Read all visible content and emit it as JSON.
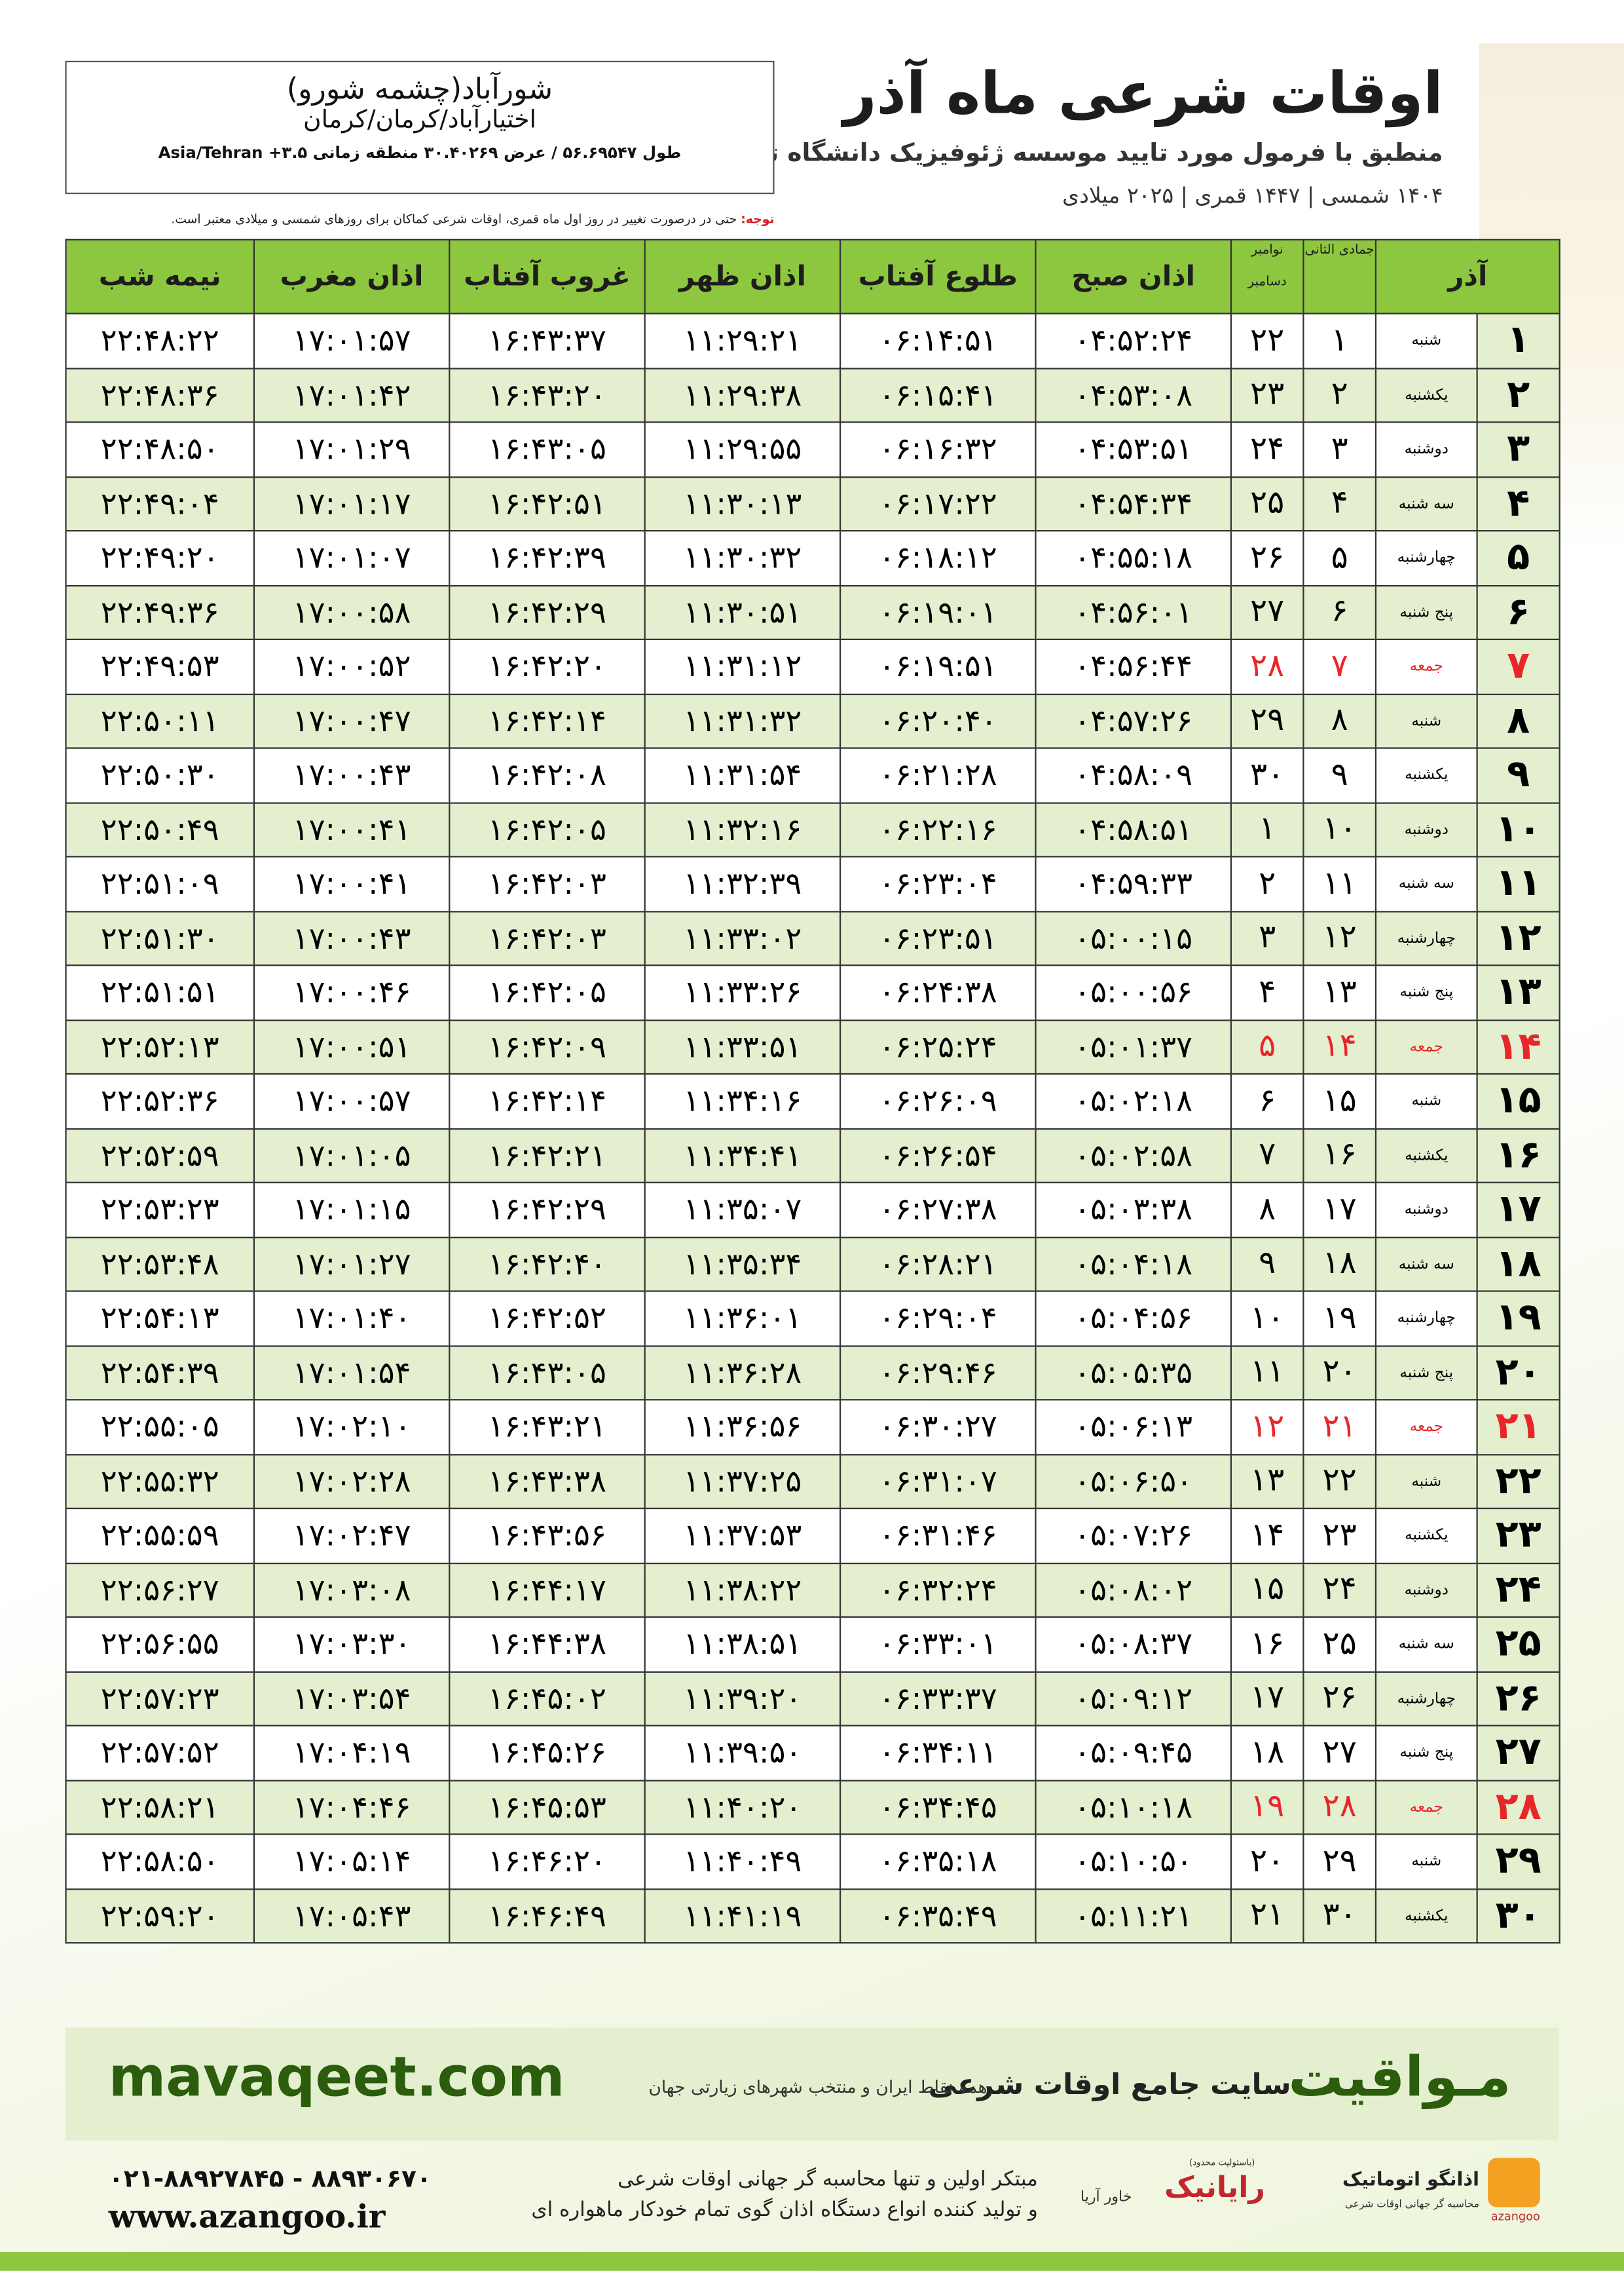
{
  "header": {
    "title": "اوقات شرعی ماه آذر",
    "subtitle": "منطبق با فرمول مورد تایید موسسه ژئوفیزیک دانشگاه تهران",
    "dates": "۱۴۰۴ شمسی | ۱۴۴۷ قمری | ۲۰۲۵ میلادی"
  },
  "location": {
    "name": "شورآباد(چشمه شورو)",
    "region": "اختیارآباد/کرمان/کرمان",
    "coords": "طول ۵۶.۶۹۵۴۷ / عرض ۳۰.۴۰۲۶۹ منطقه زمانی ۳.۵+ Asia/Tehran"
  },
  "note": {
    "label": "توجه:",
    "text": "حتی در درصورت تغییر در روز اول ماه قمری، اوقات شرعی کماکان برای روزهای شمسی و میلادی معتبر است."
  },
  "table": {
    "header": {
      "month": "آذر",
      "qamari": "جمادی الثانی",
      "miladi": [
        "نوامبر",
        "دسامبر"
      ],
      "times": [
        "اذان صبح",
        "طلوع آفتاب",
        "اذان ظهر",
        "غروب آفتاب",
        "اذان مغرب",
        "نیمه شب"
      ]
    },
    "highlight_color": "#e8262a",
    "rows": [
      {
        "cells": [
          "۱",
          "شنبه",
          "۱",
          "۲۲",
          "۰۴:۵۲:۲۴",
          "۰۶:۱۴:۵۱",
          "۱۱:۲۹:۲۱",
          "۱۶:۴۳:۳۷",
          "۱۷:۰۱:۵۷",
          "۲۲:۴۸:۲۲"
        ]
      },
      {
        "cells": [
          "۲",
          "یکشنبه",
          "۲",
          "۲۳",
          "۰۴:۵۳:۰۸",
          "۰۶:۱۵:۴۱",
          "۱۱:۲۹:۳۸",
          "۱۶:۴۳:۲۰",
          "۱۷:۰۱:۴۲",
          "۲۲:۴۸:۳۶"
        ]
      },
      {
        "cells": [
          "۳",
          "دوشنبه",
          "۳",
          "۲۴",
          "۰۴:۵۳:۵۱",
          "۰۶:۱۶:۳۲",
          "۱۱:۲۹:۵۵",
          "۱۶:۴۳:۰۵",
          "۱۷:۰۱:۲۹",
          "۲۲:۴۸:۵۰"
        ]
      },
      {
        "cells": [
          "۴",
          "سه شنبه",
          "۴",
          "۲۵",
          "۰۴:۵۴:۳۴",
          "۰۶:۱۷:۲۲",
          "۱۱:۳۰:۱۳",
          "۱۶:۴۲:۵۱",
          "۱۷:۰۱:۱۷",
          "۲۲:۴۹:۰۴"
        ]
      },
      {
        "cells": [
          "۵",
          "چهارشنبه",
          "۵",
          "۲۶",
          "۰۴:۵۵:۱۸",
          "۰۶:۱۸:۱۲",
          "۱۱:۳۰:۳۲",
          "۱۶:۴۲:۳۹",
          "۱۷:۰۱:۰۷",
          "۲۲:۴۹:۲۰"
        ]
      },
      {
        "cells": [
          "۶",
          "پنج شنبه",
          "۶",
          "۲۷",
          "۰۴:۵۶:۰۱",
          "۰۶:۱۹:۰۱",
          "۱۱:۳۰:۵۱",
          "۱۶:۴۲:۲۹",
          "۱۷:۰۰:۵۸",
          "۲۲:۴۹:۳۶"
        ]
      },
      {
        "cells": [
          "۷",
          "جمعه",
          "۷",
          "۲۸",
          "۰۴:۵۶:۴۴",
          "۰۶:۱۹:۵۱",
          "۱۱:۳۱:۱۲",
          "۱۶:۴۲:۲۰",
          "۱۷:۰۰:۵۲",
          "۲۲:۴۹:۵۳"
        ],
        "holiday": true
      },
      {
        "cells": [
          "۸",
          "شنبه",
          "۸",
          "۲۹",
          "۰۴:۵۷:۲۶",
          "۰۶:۲۰:۴۰",
          "۱۱:۳۱:۳۲",
          "۱۶:۴۲:۱۴",
          "۱۷:۰۰:۴۷",
          "۲۲:۵۰:۱۱"
        ]
      },
      {
        "cells": [
          "۹",
          "یکشنبه",
          "۹",
          "۳۰",
          "۰۴:۵۸:۰۹",
          "۰۶:۲۱:۲۸",
          "۱۱:۳۱:۵۴",
          "۱۶:۴۲:۰۸",
          "۱۷:۰۰:۴۳",
          "۲۲:۵۰:۳۰"
        ]
      },
      {
        "cells": [
          "۱۰",
          "دوشنبه",
          "۱۰",
          "۱",
          "۰۴:۵۸:۵۱",
          "۰۶:۲۲:۱۶",
          "۱۱:۳۲:۱۶",
          "۱۶:۴۲:۰۵",
          "۱۷:۰۰:۴۱",
          "۲۲:۵۰:۴۹"
        ]
      },
      {
        "cells": [
          "۱۱",
          "سه شنبه",
          "۱۱",
          "۲",
          "۰۴:۵۹:۳۳",
          "۰۶:۲۳:۰۴",
          "۱۱:۳۲:۳۹",
          "۱۶:۴۲:۰۳",
          "۱۷:۰۰:۴۱",
          "۲۲:۵۱:۰۹"
        ]
      },
      {
        "cells": [
          "۱۲",
          "چهارشنبه",
          "۱۲",
          "۳",
          "۰۵:۰۰:۱۵",
          "۰۶:۲۳:۵۱",
          "۱۱:۳۳:۰۲",
          "۱۶:۴۲:۰۳",
          "۱۷:۰۰:۴۳",
          "۲۲:۵۱:۳۰"
        ]
      },
      {
        "cells": [
          "۱۳",
          "پنج شنبه",
          "۱۳",
          "۴",
          "۰۵:۰۰:۵۶",
          "۰۶:۲۴:۳۸",
          "۱۱:۳۳:۲۶",
          "۱۶:۴۲:۰۵",
          "۱۷:۰۰:۴۶",
          "۲۲:۵۱:۵۱"
        ]
      },
      {
        "cells": [
          "۱۴",
          "جمعه",
          "۱۴",
          "۵",
          "۰۵:۰۱:۳۷",
          "۰۶:۲۵:۲۴",
          "۱۱:۳۳:۵۱",
          "۱۶:۴۲:۰۹",
          "۱۷:۰۰:۵۱",
          "۲۲:۵۲:۱۳"
        ],
        "holiday": true
      },
      {
        "cells": [
          "۱۵",
          "شنبه",
          "۱۵",
          "۶",
          "۰۵:۰۲:۱۸",
          "۰۶:۲۶:۰۹",
          "۱۱:۳۴:۱۶",
          "۱۶:۴۲:۱۴",
          "۱۷:۰۰:۵۷",
          "۲۲:۵۲:۳۶"
        ]
      },
      {
        "cells": [
          "۱۶",
          "یکشنبه",
          "۱۶",
          "۷",
          "۰۵:۰۲:۵۸",
          "۰۶:۲۶:۵۴",
          "۱۱:۳۴:۴۱",
          "۱۶:۴۲:۲۱",
          "۱۷:۰۱:۰۵",
          "۲۲:۵۲:۵۹"
        ]
      },
      {
        "cells": [
          "۱۷",
          "دوشنبه",
          "۱۷",
          "۸",
          "۰۵:۰۳:۳۸",
          "۰۶:۲۷:۳۸",
          "۱۱:۳۵:۰۷",
          "۱۶:۴۲:۲۹",
          "۱۷:۰۱:۱۵",
          "۲۲:۵۳:۲۳"
        ]
      },
      {
        "cells": [
          "۱۸",
          "سه شنبه",
          "۱۸",
          "۹",
          "۰۵:۰۴:۱۸",
          "۰۶:۲۸:۲۱",
          "۱۱:۳۵:۳۴",
          "۱۶:۴۲:۴۰",
          "۱۷:۰۱:۲۷",
          "۲۲:۵۳:۴۸"
        ]
      },
      {
        "cells": [
          "۱۹",
          "چهارشنبه",
          "۱۹",
          "۱۰",
          "۰۵:۰۴:۵۶",
          "۰۶:۲۹:۰۴",
          "۱۱:۳۶:۰۱",
          "۱۶:۴۲:۵۲",
          "۱۷:۰۱:۴۰",
          "۲۲:۵۴:۱۳"
        ]
      },
      {
        "cells": [
          "۲۰",
          "پنج شنبه",
          "۲۰",
          "۱۱",
          "۰۵:۰۵:۳۵",
          "۰۶:۲۹:۴۶",
          "۱۱:۳۶:۲۸",
          "۱۶:۴۳:۰۵",
          "۱۷:۰۱:۵۴",
          "۲۲:۵۴:۳۹"
        ]
      },
      {
        "cells": [
          "۲۱",
          "جمعه",
          "۲۱",
          "۱۲",
          "۰۵:۰۶:۱۳",
          "۰۶:۳۰:۲۷",
          "۱۱:۳۶:۵۶",
          "۱۶:۴۳:۲۱",
          "۱۷:۰۲:۱۰",
          "۲۲:۵۵:۰۵"
        ],
        "holiday": true
      },
      {
        "cells": [
          "۲۲",
          "شنبه",
          "۲۲",
          "۱۳",
          "۰۵:۰۶:۵۰",
          "۰۶:۳۱:۰۷",
          "۱۱:۳۷:۲۵",
          "۱۶:۴۳:۳۸",
          "۱۷:۰۲:۲۸",
          "۲۲:۵۵:۳۲"
        ]
      },
      {
        "cells": [
          "۲۳",
          "یکشنبه",
          "۲۳",
          "۱۴",
          "۰۵:۰۷:۲۶",
          "۰۶:۳۱:۴۶",
          "۱۱:۳۷:۵۳",
          "۱۶:۴۳:۵۶",
          "۱۷:۰۲:۴۷",
          "۲۲:۵۵:۵۹"
        ]
      },
      {
        "cells": [
          "۲۴",
          "دوشنبه",
          "۲۴",
          "۱۵",
          "۰۵:۰۸:۰۲",
          "۰۶:۳۲:۲۴",
          "۱۱:۳۸:۲۲",
          "۱۶:۴۴:۱۷",
          "۱۷:۰۳:۰۸",
          "۲۲:۵۶:۲۷"
        ]
      },
      {
        "cells": [
          "۲۵",
          "سه شنبه",
          "۲۵",
          "۱۶",
          "۰۵:۰۸:۳۷",
          "۰۶:۳۳:۰۱",
          "۱۱:۳۸:۵۱",
          "۱۶:۴۴:۳۸",
          "۱۷:۰۳:۳۰",
          "۲۲:۵۶:۵۵"
        ]
      },
      {
        "cells": [
          "۲۶",
          "چهارشنبه",
          "۲۶",
          "۱۷",
          "۰۵:۰۹:۱۲",
          "۰۶:۳۳:۳۷",
          "۱۱:۳۹:۲۰",
          "۱۶:۴۵:۰۲",
          "۱۷:۰۳:۵۴",
          "۲۲:۵۷:۲۳"
        ]
      },
      {
        "cells": [
          "۲۷",
          "پنج شنبه",
          "۲۷",
          "۱۸",
          "۰۵:۰۹:۴۵",
          "۰۶:۳۴:۱۱",
          "۱۱:۳۹:۵۰",
          "۱۶:۴۵:۲۶",
          "۱۷:۰۴:۱۹",
          "۲۲:۵۷:۵۲"
        ]
      },
      {
        "cells": [
          "۲۸",
          "جمعه",
          "۲۸",
          "۱۹",
          "۰۵:۱۰:۱۸",
          "۰۶:۳۴:۴۵",
          "۱۱:۴۰:۲۰",
          "۱۶:۴۵:۵۳",
          "۱۷:۰۴:۴۶",
          "۲۲:۵۸:۲۱"
        ],
        "holiday": true
      },
      {
        "cells": [
          "۲۹",
          "شنبه",
          "۲۹",
          "۲۰",
          "۰۵:۱۰:۵۰",
          "۰۶:۳۵:۱۸",
          "۱۱:۴۰:۴۹",
          "۱۶:۴۶:۲۰",
          "۱۷:۰۵:۱۴",
          "۲۲:۵۸:۵۰"
        ]
      },
      {
        "cells": [
          "۳۰",
          "یکشنبه",
          "۳۰",
          "۲۱",
          "۰۵:۱۱:۲۱",
          "۰۶:۳۵:۴۹",
          "۱۱:۴۱:۱۹",
          "۱۶:۴۶:۴۹",
          "۱۷:۰۵:۴۳",
          "۲۲:۵۹:۲۰"
        ]
      }
    ]
  },
  "banner": {
    "brand": "مـواقیت",
    "site_title": "سایت جامع اوقات شرعی",
    "tagline": "همه نقاط ایران و منتخب شهرهای زیارتی جهان",
    "url": "mavaqeet.com"
  },
  "footer": {
    "phone": "۰۲۱-۸۸۹۲۷۸۴۵ - ۸۸۹۳۰۶۷۰",
    "website": "www.azangoo.ir",
    "line1": "مبتکر اولین و تنها محاسبه گر جهانی اوقات شرعی",
    "line2": "و تولید کننده انواع دستگاه اذان گوی تمام خودکار ماهواره ای",
    "logo1": {
      "name": "رایانیک",
      "sub": "خاور آریا",
      "tag": "(باسئولیت محدود)"
    },
    "logo2": {
      "name": "اذانگو اتوماتیک",
      "sub": "محاسبه گر جهانی اوقات شرعی",
      "latin": "azangoo"
    }
  }
}
